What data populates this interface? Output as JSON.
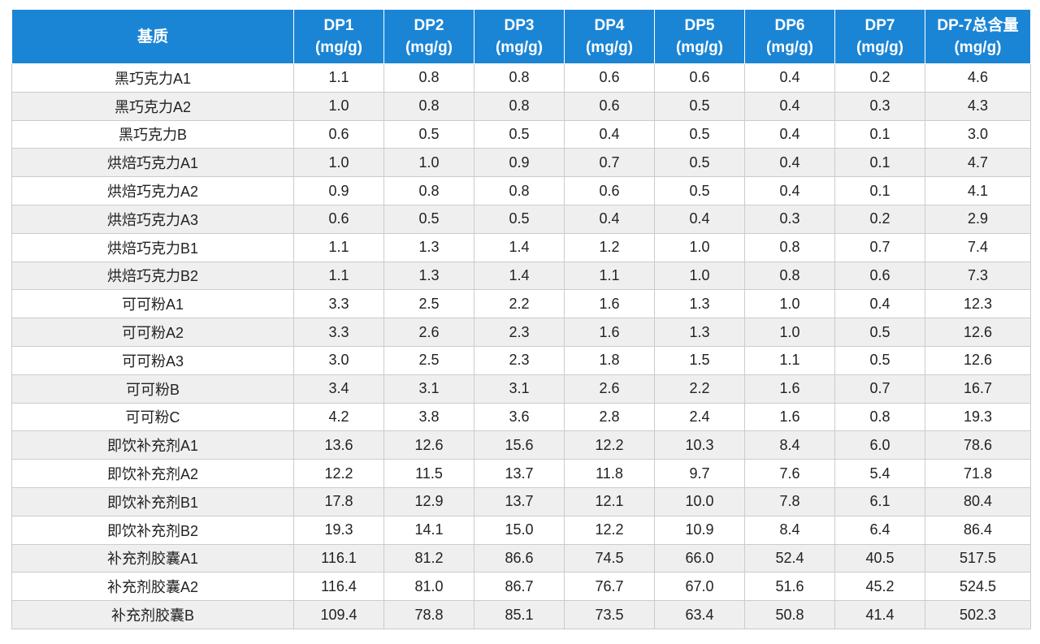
{
  "table": {
    "headers": [
      {
        "name": "基质",
        "unit": ""
      },
      {
        "name": "DP1",
        "unit": "(mg/g)"
      },
      {
        "name": "DP2",
        "unit": "(mg/g)"
      },
      {
        "name": "DP3",
        "unit": "(mg/g)"
      },
      {
        "name": "DP4",
        "unit": "(mg/g)"
      },
      {
        "name": "DP5",
        "unit": "(mg/g)"
      },
      {
        "name": "DP6",
        "unit": "(mg/g)"
      },
      {
        "name": "DP7",
        "unit": "(mg/g)"
      },
      {
        "name": "DP-7总含量",
        "unit": "(mg/g)"
      }
    ],
    "rows": [
      [
        "黑巧克力A1",
        "1.1",
        "0.8",
        "0.8",
        "0.6",
        "0.6",
        "0.4",
        "0.2",
        "4.6"
      ],
      [
        "黑巧克力A2",
        "1.0",
        "0.8",
        "0.8",
        "0.6",
        "0.5",
        "0.4",
        "0.3",
        "4.3"
      ],
      [
        "黑巧克力B",
        "0.6",
        "0.5",
        "0.5",
        "0.4",
        "0.5",
        "0.4",
        "0.1",
        "3.0"
      ],
      [
        "烘焙巧克力A1",
        "1.0",
        "1.0",
        "0.9",
        "0.7",
        "0.5",
        "0.4",
        "0.1",
        "4.7"
      ],
      [
        "烘焙巧克力A2",
        "0.9",
        "0.8",
        "0.8",
        "0.6",
        "0.5",
        "0.4",
        "0.1",
        "4.1"
      ],
      [
        "烘焙巧克力A3",
        "0.6",
        "0.5",
        "0.5",
        "0.4",
        "0.4",
        "0.3",
        "0.2",
        "2.9"
      ],
      [
        "烘焙巧克力B1",
        "1.1",
        "1.3",
        "1.4",
        "1.2",
        "1.0",
        "0.8",
        "0.7",
        "7.4"
      ],
      [
        "烘焙巧克力B2",
        "1.1",
        "1.3",
        "1.4",
        "1.1",
        "1.0",
        "0.8",
        "0.6",
        "7.3"
      ],
      [
        "可可粉A1",
        "3.3",
        "2.5",
        "2.2",
        "1.6",
        "1.3",
        "1.0",
        "0.4",
        "12.3"
      ],
      [
        "可可粉A2",
        "3.3",
        "2.6",
        "2.3",
        "1.6",
        "1.3",
        "1.0",
        "0.5",
        "12.6"
      ],
      [
        "可可粉A3",
        "3.0",
        "2.5",
        "2.3",
        "1.8",
        "1.5",
        "1.1",
        "0.5",
        "12.6"
      ],
      [
        "可可粉B",
        "3.4",
        "3.1",
        "3.1",
        "2.6",
        "2.2",
        "1.6",
        "0.7",
        "16.7"
      ],
      [
        "可可粉C",
        "4.2",
        "3.8",
        "3.6",
        "2.8",
        "2.4",
        "1.6",
        "0.8",
        "19.3"
      ],
      [
        "即饮补充剂A1",
        "13.6",
        "12.6",
        "15.6",
        "12.2",
        "10.3",
        "8.4",
        "6.0",
        "78.6"
      ],
      [
        "即饮补充剂A2",
        "12.2",
        "11.5",
        "13.7",
        "11.8",
        "9.7",
        "7.6",
        "5.4",
        "71.8"
      ],
      [
        "即饮补充剂B1",
        "17.8",
        "12.9",
        "13.7",
        "12.1",
        "10.0",
        "7.8",
        "6.1",
        "80.4"
      ],
      [
        "即饮补充剂B2",
        "19.3",
        "14.1",
        "15.0",
        "12.2",
        "10.9",
        "8.4",
        "6.4",
        "86.4"
      ],
      [
        "补充剂胶囊A1",
        "116.1",
        "81.2",
        "86.6",
        "74.5",
        "66.0",
        "52.4",
        "40.5",
        "517.5"
      ],
      [
        "补充剂胶囊A2",
        "116.4",
        "81.0",
        "86.7",
        "76.7",
        "67.0",
        "51.6",
        "45.2",
        "524.5"
      ],
      [
        "补充剂胶囊B",
        "109.4",
        "78.8",
        "85.1",
        "73.5",
        "63.4",
        "50.8",
        "41.4",
        "502.3"
      ]
    ]
  }
}
